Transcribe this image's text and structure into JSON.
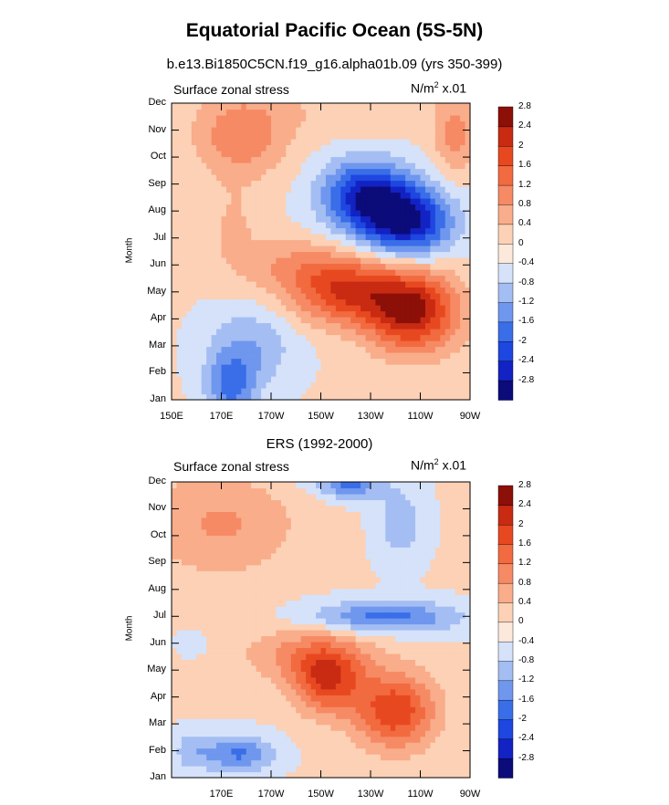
{
  "title": "Equatorial Pacific Ocean (5S-5N)",
  "subtitle": "b.e13.Bi1850C5CN.f19_g16.alpha01b.09 (yrs 350-399)",
  "colors": {
    "levels": [
      "#0b0b7a",
      "#1322c2",
      "#1e46e0",
      "#3a6ee8",
      "#6f97ee",
      "#a4bef3",
      "#d5e2f9",
      "#fde8dc",
      "#fcd1b6",
      "#f9ad8a",
      "#f68a64",
      "#f26a3f",
      "#e84820",
      "#c82a12",
      "#8c0f08"
    ]
  },
  "chart_data": [
    {
      "type": "heatmap",
      "label": "Surface zonal stress",
      "units": "N/m",
      "units_sup": "2",
      "units_scale": "x.01",
      "ylabel": "Month",
      "months": [
        "Jan",
        "Feb",
        "Mar",
        "Apr",
        "May",
        "Jun",
        "Jul",
        "Aug",
        "Sep",
        "Oct",
        "Nov",
        "Dec"
      ],
      "xticks": [
        "150E",
        "170E",
        "170W",
        "150W",
        "130W",
        "110W",
        "90W"
      ],
      "contour_levels": [
        "-2.8",
        "-2.4",
        "-2",
        "-1.6",
        "-1.2",
        "-0.8",
        "-0.4",
        "0",
        "0.4",
        "0.8",
        "1.2",
        "1.6",
        "2",
        "2.4",
        "2.8"
      ],
      "xlim_deg": [
        150,
        270
      ],
      "features": [
        {
          "lon": 174,
          "month": 0.5,
          "value": -1.3,
          "wlon": 10,
          "wmon": 1.2
        },
        {
          "lon": 182,
          "month": 2.0,
          "value": -0.8,
          "wlon": 18,
          "wmon": 1.5
        },
        {
          "lon": 247,
          "month": 3.3,
          "value": 2.4,
          "wlon": 18,
          "wmon": 1.5
        },
        {
          "lon": 220,
          "month": 4.0,
          "value": 1.8,
          "wlon": 22,
          "wmon": 1.2
        },
        {
          "lon": 200,
          "month": 5.0,
          "value": 0.7,
          "wlon": 25,
          "wmon": 1.0
        },
        {
          "lon": 245,
          "month": 6.6,
          "value": -2.4,
          "wlon": 18,
          "wmon": 1.3
        },
        {
          "lon": 228,
          "month": 7.6,
          "value": -2.2,
          "wlon": 18,
          "wmon": 1.3
        },
        {
          "lon": 175,
          "month": 6.5,
          "value": 0.4,
          "wlon": 10,
          "wmon": 1.5
        },
        {
          "lon": 178,
          "month": 9.8,
          "value": 1.1,
          "wlon": 18,
          "wmon": 1.5
        },
        {
          "lon": 264,
          "month": 9.8,
          "value": 0.9,
          "wlon": 8,
          "wmon": 1.5
        },
        {
          "lon": 220,
          "month": 10.8,
          "value": 0.3,
          "wlon": 40,
          "wmon": 1.0
        }
      ]
    },
    {
      "type": "heatmap",
      "title": "ERS (1992-2000)",
      "label": "Surface zonal stress",
      "units": "N/m",
      "units_sup": "2",
      "units_scale": "x.01",
      "ylabel": "Month",
      "months": [
        "Jan",
        "Feb",
        "Mar",
        "Apr",
        "May",
        "Jun",
        "Jul",
        "Aug",
        "Sep",
        "Oct",
        "Nov",
        "Dec"
      ],
      "xticks": [
        "170E",
        "170W",
        "150W",
        "130W",
        "110W",
        "90W"
      ],
      "contour_levels": [
        "-2.8",
        "-2.4",
        "-2",
        "-1.6",
        "-1.2",
        "-0.8",
        "-0.4",
        "0",
        "0.4",
        "0.8",
        "1.2",
        "1.6",
        "2",
        "2.4",
        "2.8"
      ],
      "xlim_deg": [
        150,
        270
      ],
      "features": [
        {
          "lon": 177,
          "month": 0.9,
          "value": -1.3,
          "wlon": 14,
          "wmon": 0.7
        },
        {
          "lon": 158,
          "month": 1.0,
          "value": -0.6,
          "wlon": 8,
          "wmon": 0.8
        },
        {
          "lon": 240,
          "month": 2.5,
          "value": 1.9,
          "wlon": 16,
          "wmon": 1.4
        },
        {
          "lon": 213,
          "month": 3.6,
          "value": 1.8,
          "wlon": 14,
          "wmon": 1.2
        },
        {
          "lon": 205,
          "month": 4.6,
          "value": 0.9,
          "wlon": 25,
          "wmon": 1.0
        },
        {
          "lon": 236,
          "month": 6.0,
          "value": -1.4,
          "wlon": 30,
          "wmon": 0.6
        },
        {
          "lon": 158,
          "month": 5.0,
          "value": -0.3,
          "wlon": 6,
          "wmon": 0.5
        },
        {
          "lon": 170,
          "month": 9.5,
          "value": 0.8,
          "wlon": 30,
          "wmon": 2.0
        },
        {
          "lon": 242,
          "month": 9.5,
          "value": -0.7,
          "wlon": 10,
          "wmon": 1.5
        },
        {
          "lon": 222,
          "month": 11.0,
          "value": -1.3,
          "wlon": 12,
          "wmon": 0.6
        },
        {
          "lon": 205,
          "month": 11.5,
          "value": -0.4,
          "wlon": 20,
          "wmon": 0.8
        }
      ]
    }
  ]
}
